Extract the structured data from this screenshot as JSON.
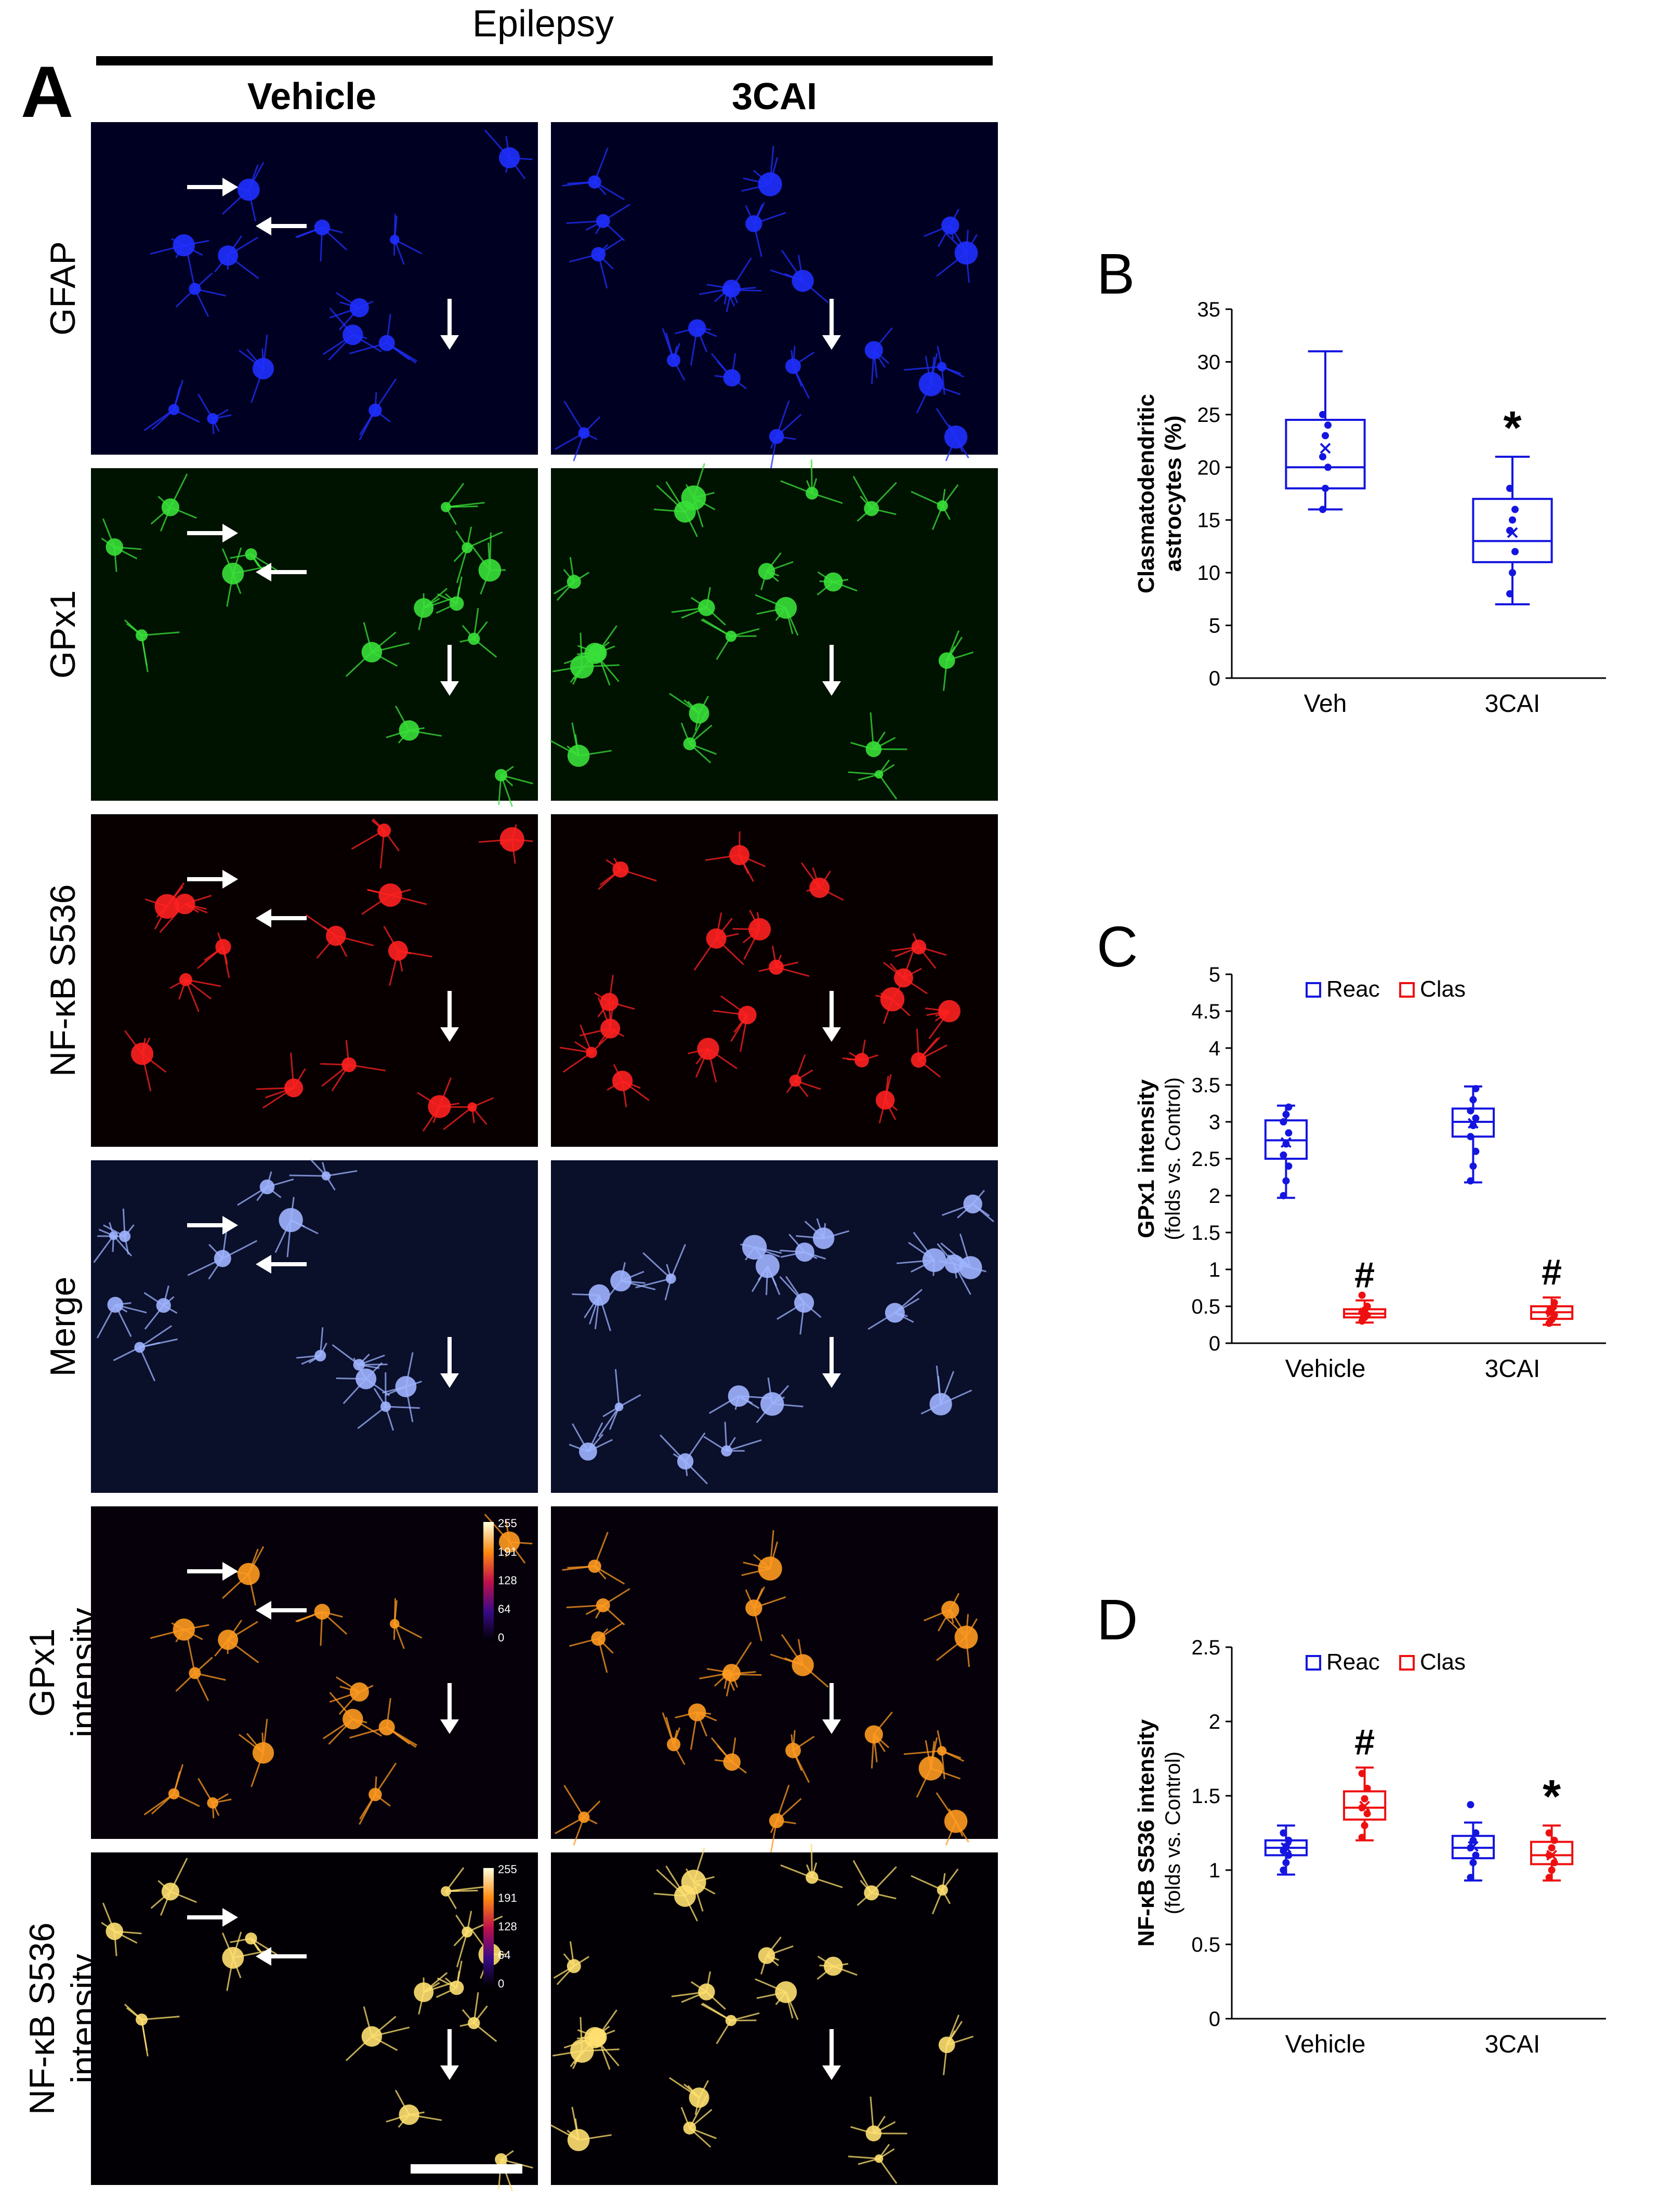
{
  "panel_a": {
    "letter": "A",
    "header": "Epilepsy",
    "columns": [
      "Vehicle",
      "3CAI"
    ],
    "rows": [
      {
        "lines": [
          "GFAP"
        ],
        "color": "#1f2fff",
        "bg": "#000022"
      },
      {
        "lines": [
          "GPx1"
        ],
        "color": "#38e038",
        "bg": "#001200"
      },
      {
        "lines": [
          "NF-κB S536"
        ],
        "color": "#ff2020",
        "bg": "#080000"
      },
      {
        "lines": [
          "Merge"
        ],
        "color": "#9fb4ff",
        "bg": "#0a0f2a"
      },
      {
        "lines": [
          "GPx1",
          "intensity"
        ],
        "color": "#ff9a20",
        "bg": "#05000a"
      },
      {
        "lines": [
          "NF-κB S536",
          "intensity"
        ],
        "color": "#ffe070",
        "bg": "#020005"
      }
    ],
    "colorbar_ticks": [
      "255",
      "191",
      "128",
      "64",
      "0"
    ]
  },
  "chart_data": [
    {
      "panel": "B",
      "type": "box",
      "ylabel_lines": [
        "Clasmatodendritic",
        "astrocytes (%)"
      ],
      "ylim": [
        0,
        35
      ],
      "yticks": [
        0,
        5,
        10,
        15,
        20,
        25,
        30,
        35
      ],
      "categories": [
        "Veh",
        "3CAI"
      ],
      "series": [
        {
          "color": "#1515e0",
          "boxes": [
            {
              "min": 16,
              "q1": 18,
              "median": 20,
              "q3": 24.5,
              "max": 31,
              "mean": 21.8,
              "points": [
                16,
                18,
                20,
                21,
                23,
                24,
                25
              ],
              "annotation": ""
            },
            {
              "min": 7,
              "q1": 11,
              "median": 13,
              "q3": 17,
              "max": 21,
              "mean": 13.8,
              "points": [
                8,
                10,
                12,
                14,
                15,
                16,
                18
              ],
              "annotation": "*"
            }
          ]
        }
      ]
    },
    {
      "panel": "C",
      "type": "box",
      "ylabel_main": "GPx1 intensity",
      "ylabel_sub": "(folds vs. Control)",
      "ylim": [
        0,
        5
      ],
      "yticks": [
        "0",
        "0.5",
        "1",
        "1.5",
        "2",
        "2.5",
        "3",
        "3.5",
        "4",
        "4.5",
        "5"
      ],
      "categories": [
        "Vehicle",
        "3CAI"
      ],
      "legend": {
        "position": "top-center"
      },
      "series": [
        {
          "name": "Reac",
          "color": "#1515e0",
          "boxes": [
            {
              "min": 1.97,
              "q1": 2.5,
              "median": 2.75,
              "q3": 3.02,
              "max": 3.22,
              "mean": 2.72,
              "points": [
                2.0,
                2.2,
                2.4,
                2.55,
                2.7,
                2.85,
                3.0,
                3.1,
                3.2
              ],
              "annotation": ""
            },
            {
              "min": 2.18,
              "q1": 2.8,
              "median": 3.0,
              "q3": 3.18,
              "max": 3.48,
              "mean": 2.98,
              "points": [
                2.2,
                2.4,
                2.6,
                2.8,
                2.95,
                3.05,
                3.15,
                3.3,
                3.45
              ],
              "annotation": ""
            }
          ]
        },
        {
          "name": "Clas",
          "color": "#ee1010",
          "boxes": [
            {
              "min": 0.28,
              "q1": 0.35,
              "median": 0.4,
              "q3": 0.46,
              "max": 0.58,
              "mean": 0.41,
              "points": [
                0.3,
                0.35,
                0.38,
                0.42,
                0.45,
                0.5,
                0.65
              ],
              "annotation": "#"
            },
            {
              "min": 0.25,
              "q1": 0.33,
              "median": 0.42,
              "q3": 0.5,
              "max": 0.62,
              "mean": 0.42,
              "points": [
                0.27,
                0.32,
                0.38,
                0.42,
                0.47,
                0.55
              ],
              "annotation": "#"
            }
          ]
        }
      ]
    },
    {
      "panel": "D",
      "type": "box",
      "ylabel_main": "NF-κB S536 intensity",
      "ylabel_sub": "(folds vs. Control)",
      "ylim": [
        0,
        2.5
      ],
      "yticks": [
        "0",
        "0.5",
        "1",
        "1.5",
        "2",
        "2.5"
      ],
      "categories": [
        "Vehicle",
        "3CAI"
      ],
      "legend": {
        "position": "top-center"
      },
      "series": [
        {
          "name": "Reac",
          "color": "#1515e0",
          "boxes": [
            {
              "min": 0.97,
              "q1": 1.1,
              "median": 1.15,
              "q3": 1.2,
              "max": 1.3,
              "mean": 1.15,
              "points": [
                1.0,
                1.05,
                1.1,
                1.13,
                1.16,
                1.2,
                1.25
              ],
              "annotation": ""
            },
            {
              "min": 0.93,
              "q1": 1.08,
              "median": 1.15,
              "q3": 1.23,
              "max": 1.32,
              "mean": 1.16,
              "points": [
                0.95,
                1.05,
                1.1,
                1.15,
                1.2,
                1.25,
                1.44
              ],
              "annotation": ""
            }
          ]
        },
        {
          "name": "Clas",
          "color": "#ee1010",
          "boxes": [
            {
              "min": 1.2,
              "q1": 1.34,
              "median": 1.42,
              "q3": 1.53,
              "max": 1.69,
              "mean": 1.43,
              "points": [
                1.22,
                1.3,
                1.38,
                1.42,
                1.48,
                1.55,
                1.65
              ],
              "annotation": "#"
            },
            {
              "min": 0.93,
              "q1": 1.04,
              "median": 1.1,
              "q3": 1.19,
              "max": 1.3,
              "mean": 1.1,
              "points": [
                0.95,
                1.0,
                1.05,
                1.1,
                1.15,
                1.2,
                1.25
              ],
              "annotation": "*"
            }
          ]
        }
      ]
    }
  ],
  "panel_letters": [
    "B",
    "C",
    "D"
  ]
}
